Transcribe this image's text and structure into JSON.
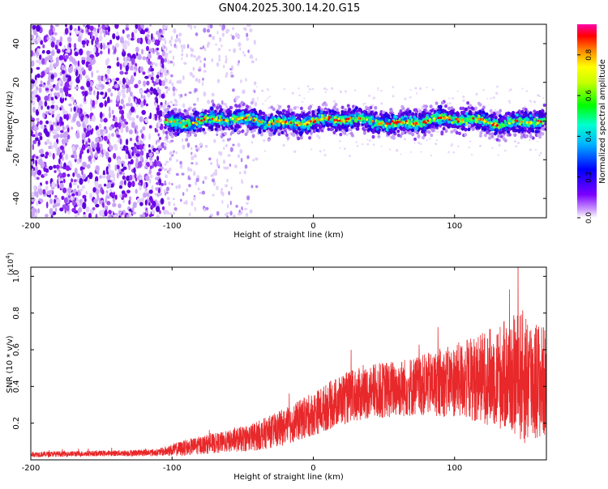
{
  "title": "GN04.2025.300.14.20.G15",
  "colors": {
    "snr_line": "#e8282a",
    "scatter_purple": "#7a10ee",
    "scatter_light": "#c9a4f5",
    "frame": "#000000"
  },
  "chart_data": [
    {
      "type": "heatmap",
      "name": "spectrogram",
      "xlabel": "Height of straight line (km)",
      "ylabel": "Frequency (Hz)",
      "xlim": [
        -200,
        165
      ],
      "ylim": [
        -50,
        50
      ],
      "x_ticks": [
        -200,
        -100,
        0,
        100
      ],
      "y_ticks": [
        -40,
        -20,
        0,
        20,
        40
      ],
      "description_of_pattern": {
        "noise_region_x": [
          -200,
          -105
        ],
        "sparse_region_x": [
          -105,
          -40
        ],
        "signal_band_center_hz": 0,
        "signal_band_halfwidth_hz": 6
      },
      "colorbar": {
        "label": "Normalized spectral amplitude",
        "range": [
          0.0,
          0.95
        ],
        "ticks": [
          "0.0",
          "0.2",
          "0.4",
          "0.6",
          "0.8"
        ],
        "colormap": [
          "#ffffff",
          "#7a00ff",
          "#0000ff",
          "#00ffff",
          "#00ff00",
          "#ffff00",
          "#ff8000",
          "#ff0000",
          "#ff00aa"
        ]
      }
    },
    {
      "type": "line",
      "name": "snr",
      "xlabel": "Height of straight line (km)",
      "ylabel": "SNR (10 * v/v)",
      "scale_label": "(x10",
      "scale_exp": "4",
      "scale_close": ")",
      "xlim": [
        -200,
        165
      ],
      "ylim": [
        0,
        1.05
      ],
      "x_ticks": [
        -200,
        -100,
        0,
        100
      ],
      "y_ticks": [
        "0.2",
        "0.4",
        "0.6",
        "0.8",
        "1.0"
      ],
      "envelope": {
        "x": [
          -200,
          -150,
          -110,
          -95,
          -80,
          -60,
          -40,
          -20,
          0,
          20,
          40,
          60,
          80,
          100,
          120,
          140,
          150,
          165
        ],
        "mean": [
          0.03,
          0.035,
          0.04,
          0.06,
          0.08,
          0.1,
          0.13,
          0.18,
          0.25,
          0.33,
          0.37,
          0.39,
          0.41,
          0.43,
          0.45,
          0.46,
          0.45,
          0.42
        ],
        "spread": [
          0.015,
          0.015,
          0.02,
          0.04,
          0.05,
          0.06,
          0.08,
          0.1,
          0.12,
          0.14,
          0.15,
          0.16,
          0.17,
          0.2,
          0.25,
          0.32,
          0.38,
          0.3
        ]
      }
    }
  ]
}
